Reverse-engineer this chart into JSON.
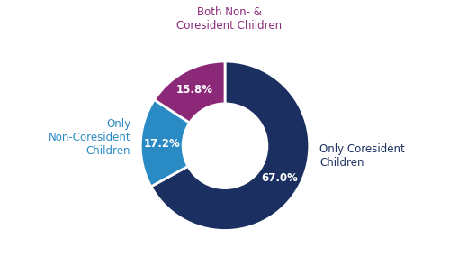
{
  "slices": [
    67.0,
    17.2,
    15.8
  ],
  "colors": [
    "#1b3060",
    "#2a8ac4",
    "#8b2878"
  ],
  "labels_right": [
    "Only Coresident\nChildren"
  ],
  "labels_left": [
    "Only\nNon-Coresident\nChildren"
  ],
  "labels_top": [
    "Both Non- &\nCoresident Children"
  ],
  "pct_labels": [
    "67.0%",
    "17.2%",
    "15.8%"
  ],
  "label_color_dark": "#1b3060",
  "label_color_blue": "#2a8ac4",
  "label_color_purple": "#8b2878",
  "background_color": "#ffffff",
  "startangle": 90,
  "donut_width": 0.5
}
